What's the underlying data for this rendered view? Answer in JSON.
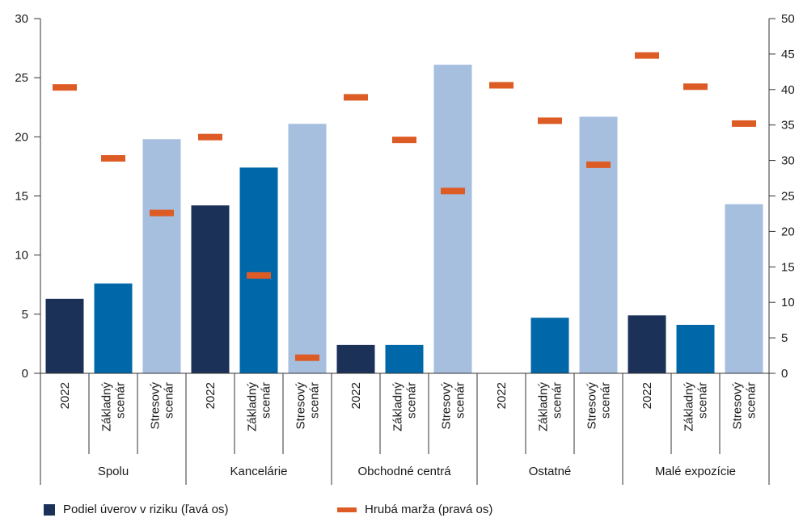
{
  "chart_data": {
    "type": "bar",
    "groups": [
      "Spolu",
      "Kancelárie",
      "Obchodné centrá",
      "Ostatné",
      "Malé expozície"
    ],
    "categories": [
      "2022",
      "Základný scenár",
      "Stresový scenár"
    ],
    "category_lines": [
      [
        "2022"
      ],
      [
        "Základný",
        "scenár"
      ],
      [
        "Stresový",
        "scenár"
      ]
    ],
    "series": [
      {
        "name": "Podiel úverov v riziku (ľavá os)",
        "axis": "left",
        "kind": "bar",
        "values": [
          [
            6.3,
            7.6,
            19.8
          ],
          [
            14.2,
            17.4,
            21.1
          ],
          [
            2.4,
            2.4,
            26.1
          ],
          [
            0,
            4.7,
            21.7
          ],
          [
            4.9,
            4.1,
            14.3
          ]
        ]
      },
      {
        "name": "Hrubá marža (pravá os)",
        "axis": "right",
        "kind": "marker",
        "values": [
          [
            40.3,
            30.3,
            22.6
          ],
          [
            33.3,
            13.8,
            2.2
          ],
          [
            38.9,
            32.9,
            25.7
          ],
          [
            40.6,
            35.6,
            29.4
          ],
          [
            44.8,
            40.4,
            35.2
          ]
        ]
      }
    ],
    "y_left": {
      "ylim": [
        0,
        30
      ],
      "ticks": [
        "0",
        "5",
        "10",
        "15",
        "20",
        "25",
        "30"
      ]
    },
    "y_right": {
      "ylim": [
        0,
        50
      ],
      "ticks": [
        "0",
        "5",
        "10",
        "15",
        "20",
        "25",
        "30",
        "35",
        "40",
        "45",
        "50"
      ]
    },
    "colors": {
      "bar_2022": "#1b3158",
      "bar_base": "#0067a8",
      "bar_stress": "#a6bfdf",
      "marker": "#dd5b24",
      "axis": "#333333"
    },
    "legend_position": "bottom-left",
    "grid": false
  }
}
